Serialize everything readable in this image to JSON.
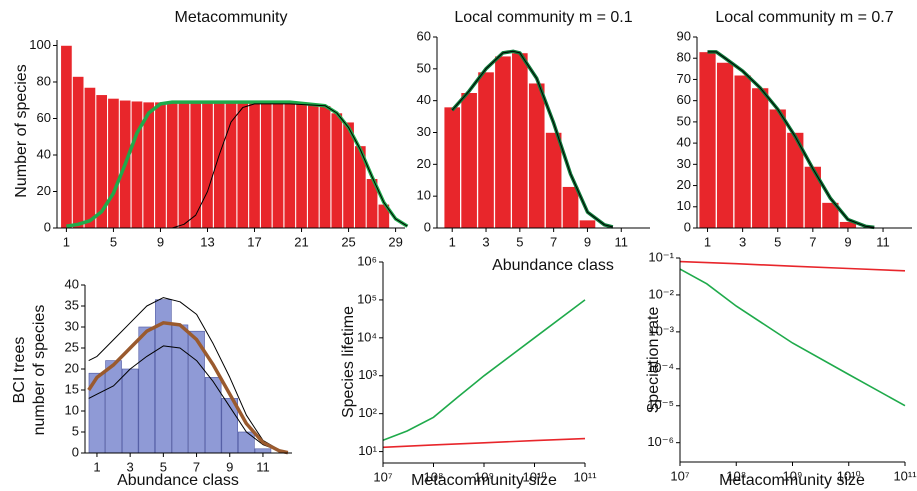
{
  "chart_data": [
    {
      "type": "bar",
      "title": "Metacommunity",
      "ylabel": [
        "Number of species"
      ],
      "x": [
        1,
        2,
        3,
        4,
        5,
        6,
        7,
        8,
        9,
        10,
        11,
        12,
        13,
        14,
        15,
        16,
        17,
        18,
        19,
        20,
        21,
        22,
        23,
        24,
        25,
        26,
        27,
        28
      ],
      "values": [
        100,
        83,
        77,
        73,
        71,
        70,
        69.5,
        69,
        69,
        69,
        69,
        69,
        69,
        69,
        69,
        69,
        69,
        69,
        69,
        69,
        68.5,
        68,
        67,
        63,
        58,
        45,
        27,
        13
      ],
      "color": "#e8262b",
      "edge": "#ffffff",
      "curves": [
        {
          "color": "#1faa4b",
          "width": 3.5,
          "x": [
            1,
            2,
            3,
            4,
            5,
            6,
            7,
            8,
            9,
            10,
            12,
            16,
            20,
            23,
            24,
            25,
            26,
            27,
            28,
            29,
            30
          ],
          "values": [
            1,
            2,
            4,
            9,
            19,
            35,
            52,
            63,
            68,
            69,
            69,
            69,
            69,
            67,
            63,
            55,
            43,
            28,
            14,
            5,
            1
          ]
        },
        {
          "color": "#000000",
          "width": 1,
          "x": [
            1,
            10,
            11,
            12,
            13,
            14,
            15,
            16,
            17,
            20,
            23,
            24,
            25,
            26,
            27,
            28,
            29,
            30
          ],
          "values": [
            0,
            0,
            2,
            7,
            20,
            40,
            58,
            66,
            68,
            68,
            67,
            63,
            55,
            43,
            28,
            14,
            5,
            1
          ]
        }
      ],
      "xlim": [
        0.2,
        29.8
      ],
      "xticks": [
        1,
        5,
        9,
        13,
        17,
        21,
        25,
        29
      ],
      "ylim": [
        0,
        103
      ],
      "yticks": [
        0,
        20,
        40,
        60,
        80,
        100
      ]
    },
    {
      "type": "bar",
      "title": "Local community m = 0.1",
      "xlabel": "Abundance class",
      "x": [
        1,
        2,
        3,
        4,
        5,
        6,
        7,
        8,
        9
      ],
      "values": [
        38,
        42.5,
        49,
        54,
        55,
        45.5,
        30,
        13,
        2.5
      ],
      "color": "#e8262b",
      "edge": "#ffffff",
      "curves": [
        {
          "color": "#0f7a3a",
          "width": 3.5,
          "x": [
            1,
            2,
            3,
            4,
            4.6,
            5,
            6,
            7,
            8,
            9,
            10,
            10.5
          ],
          "values": [
            37,
            43,
            50,
            55,
            55.5,
            55,
            47,
            33,
            17,
            5,
            1,
            0.3
          ]
        },
        {
          "color": "#000000",
          "width": 1,
          "x": [
            1,
            2,
            3,
            4,
            4.6,
            5,
            6,
            7,
            8,
            9,
            10,
            10.5
          ],
          "values": [
            37,
            43,
            50,
            55,
            55.5,
            55,
            47,
            33,
            17,
            5,
            1,
            0.3
          ]
        }
      ],
      "xlim": [
        0.1,
        12.7
      ],
      "xticks": [
        1,
        3,
        5,
        7,
        9,
        11
      ],
      "ylim": [
        0,
        60
      ],
      "yticks": [
        0,
        10,
        20,
        30,
        40,
        50,
        60
      ]
    },
    {
      "type": "bar",
      "title": "Local community m = 0.7",
      "x": [
        1,
        2,
        3,
        4,
        5,
        6,
        7,
        8,
        9
      ],
      "values": [
        83,
        78,
        72,
        66,
        56,
        45,
        29,
        12,
        3
      ],
      "color": "#e8262b",
      "edge": "#ffffff",
      "curves": [
        {
          "color": "#0f7a3a",
          "width": 3.5,
          "x": [
            1,
            1.5,
            2,
            3,
            4,
            5,
            6,
            7,
            8,
            9,
            10,
            10.5
          ],
          "values": [
            83,
            83,
            80,
            74,
            66,
            56,
            43,
            28,
            14,
            4,
            0.8,
            0.3
          ]
        },
        {
          "color": "#000000",
          "width": 1,
          "x": [
            1,
            1.5,
            2,
            3,
            4,
            5,
            6,
            7,
            8,
            9,
            10,
            10.5
          ],
          "values": [
            83,
            83,
            80,
            74,
            66,
            56,
            43,
            28,
            14,
            4,
            0.8,
            0.3
          ]
        }
      ],
      "xlim": [
        0.4,
        12.65
      ],
      "xticks": [
        1,
        3,
        5,
        7,
        9,
        11
      ],
      "ylim": [
        0,
        90
      ],
      "yticks": [
        0,
        10,
        20,
        30,
        40,
        50,
        60,
        70,
        80,
        90
      ]
    },
    {
      "type": "bar",
      "ylabel": [
        "BCI trees",
        "number of species"
      ],
      "xlabel": "Abundance class",
      "x": [
        1,
        2,
        3,
        4,
        5,
        6,
        7,
        8,
        9,
        10,
        11
      ],
      "values": [
        19,
        22,
        20,
        30,
        36.5,
        30.5,
        29,
        18,
        13,
        5,
        1
      ],
      "color": "#8f9ad6",
      "edge": "#4b55a0",
      "curves": [
        {
          "color": "#000000",
          "width": 1,
          "x": [
            0.5,
            1,
            2,
            3,
            4,
            5,
            6,
            7,
            8,
            9,
            10,
            11,
            12,
            12.5
          ],
          "values": [
            22,
            23,
            27,
            31,
            35,
            37,
            36,
            33,
            26,
            18,
            9,
            3,
            0.7,
            0.2
          ]
        },
        {
          "color": "#000000",
          "width": 1,
          "x": [
            0.5,
            1,
            2,
            3,
            4,
            5,
            6,
            7,
            8,
            9,
            10,
            11,
            12,
            12.5
          ],
          "values": [
            13,
            14,
            16,
            20,
            23,
            25.5,
            25,
            22,
            17,
            11,
            5,
            2,
            0.5,
            0.1
          ]
        },
        {
          "color": "#9a5a2e",
          "width": 3.5,
          "x": [
            0.5,
            1,
            2,
            3,
            4,
            5,
            6,
            7,
            8,
            9,
            10,
            11,
            12,
            12.5
          ],
          "values": [
            15,
            18,
            21,
            25,
            29,
            31,
            30.5,
            27,
            21,
            14,
            7,
            2.5,
            0.5,
            0.1
          ]
        }
      ],
      "xlim": [
        0.28,
        12.75
      ],
      "xticks": [
        1,
        3,
        5,
        7,
        9,
        11
      ],
      "ylim": [
        0,
        40
      ],
      "yticks": [
        0,
        5,
        10,
        15,
        20,
        25,
        30,
        35,
        40
      ]
    },
    {
      "type": "line",
      "ylabel": [
        "Species lifetime"
      ],
      "xlabel": "Metacommunity size",
      "xscale": "log",
      "yscale": "log",
      "series": [
        {
          "color": "#1faa4b",
          "x": [
            10000000,
            30000000,
            100000000,
            300000000,
            1000000000,
            10000000000,
            100000000000
          ],
          "values": [
            20,
            35,
            80,
            270,
            1000,
            10000,
            100000
          ]
        },
        {
          "color": "#e8262b",
          "x": [
            10000000,
            100000000,
            1000000000,
            10000000000,
            100000000000
          ],
          "values": [
            13,
            15,
            17,
            19.5,
            22
          ]
        }
      ],
      "xlim": [
        10000000,
        100000000000
      ],
      "xticks": [
        {
          "value": 10000000,
          "label": "10⁷"
        },
        {
          "value": 100000000,
          "label": "10⁸"
        },
        {
          "value": 1000000000,
          "label": "10⁹"
        },
        {
          "value": 10000000000,
          "label": "10¹⁰"
        },
        {
          "value": 100000000000,
          "label": "10¹¹"
        }
      ],
      "ylim": [
        5,
        1000000
      ],
      "yticks": [
        {
          "value": 10,
          "label": "10¹"
        },
        {
          "value": 100,
          "label": "10²"
        },
        {
          "value": 1000,
          "label": "10³"
        },
        {
          "value": 10000,
          "label": "10⁴"
        },
        {
          "value": 100000,
          "label": "10⁵"
        },
        {
          "value": 1000000,
          "label": "10⁶"
        }
      ]
    },
    {
      "type": "line",
      "ylabel": [
        "Speciation rate"
      ],
      "xlabel": "Metacommunity size",
      "xscale": "log",
      "yscale": "log",
      "series": [
        {
          "color": "#e8262b",
          "x": [
            10000000,
            100000000,
            1000000000,
            10000000000,
            100000000000
          ],
          "values": [
            0.08,
            0.07,
            0.06,
            0.052,
            0.045
          ]
        },
        {
          "color": "#1faa4b",
          "x": [
            10000000,
            30000000,
            100000000,
            1000000000,
            10000000000,
            100000000000
          ],
          "values": [
            0.05,
            0.02,
            0.005,
            0.0005,
            7e-05,
            1e-05
          ]
        }
      ],
      "xlim": [
        10000000,
        100000000000
      ],
      "xticks": [
        {
          "value": 10000000,
          "label": "10⁷"
        },
        {
          "value": 100000000,
          "label": "10⁸"
        },
        {
          "value": 1000000000,
          "label": "10⁹"
        },
        {
          "value": 10000000000,
          "label": "10¹⁰"
        },
        {
          "value": 100000000000,
          "label": "10¹¹"
        }
      ],
      "ylim": [
        3e-07,
        0.1
      ],
      "yticks": [
        {
          "value": 1e-06,
          "label": "10⁻⁶"
        },
        {
          "value": 1e-05,
          "label": "10⁻⁵"
        },
        {
          "value": 0.0001,
          "label": "10⁻⁴"
        },
        {
          "value": 0.001,
          "label": "10⁻³"
        },
        {
          "value": 0.01,
          "label": "10⁻²"
        },
        {
          "value": 0.1,
          "label": "10⁻¹"
        }
      ]
    }
  ]
}
